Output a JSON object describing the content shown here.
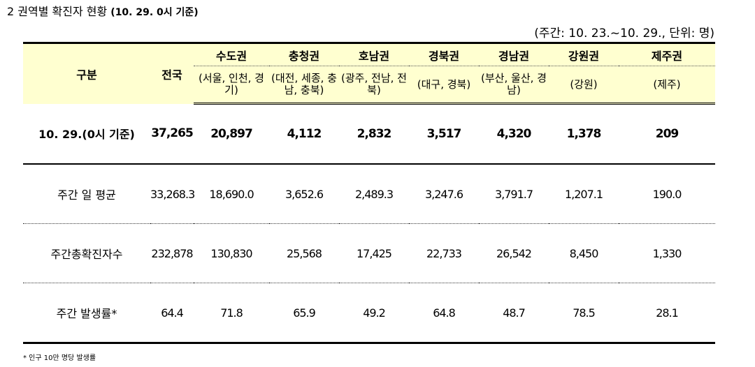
{
  "title": {
    "main": "2 권역별 확진자 현황",
    "sub": "(10. 29. 0시 기준)"
  },
  "unit_note": "(주간: 10. 23.~10. 29., 단위: 명)",
  "header": {
    "category": "구분",
    "nationwide": "전국",
    "regions": [
      {
        "name": "수도권",
        "detail": "(서울, 인천, 경기)"
      },
      {
        "name": "충청권",
        "detail": "(대전, 세종, 충남, 충북)"
      },
      {
        "name": "호남권",
        "detail": "(광주, 전남, 전북)"
      },
      {
        "name": "경북권",
        "detail": "(대구, 경북)"
      },
      {
        "name": "경남권",
        "detail": "(부산, 울산, 경남)"
      },
      {
        "name": "강원권",
        "detail": "(강원)"
      },
      {
        "name": "제주권",
        "detail": "(제주)"
      }
    ]
  },
  "rows": [
    {
      "label": "10. 29.(0시 기준)",
      "values": [
        "37,265",
        "20,897",
        "4,112",
        "2,832",
        "3,517",
        "4,320",
        "1,378",
        "209"
      ]
    },
    {
      "label": "주간 일 평균",
      "values": [
        "33,268.3",
        "18,690.0",
        "3,652.6",
        "2,489.3",
        "3,247.6",
        "3,791.7",
        "1,207.1",
        "190.0"
      ]
    },
    {
      "label": "주간총확진자수",
      "values": [
        "232,878",
        "130,830",
        "25,568",
        "17,425",
        "22,733",
        "26,542",
        "8,450",
        "1,330"
      ]
    },
    {
      "label": "주간 발생률*",
      "values": [
        "64.4",
        "71.8",
        "65.9",
        "49.2",
        "64.8",
        "48.7",
        "78.5",
        "28.1"
      ]
    }
  ],
  "footnote": "* 인구 10만 명당 발생률"
}
